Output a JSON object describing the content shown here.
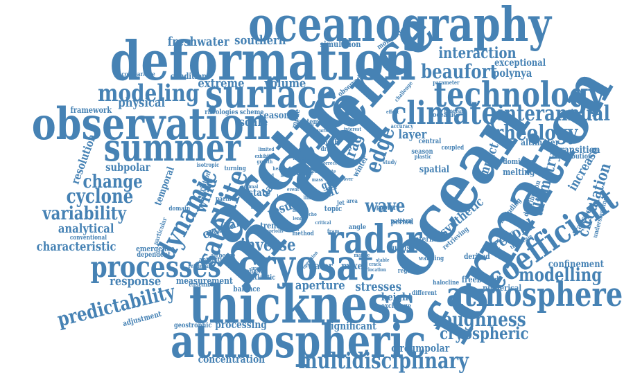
{
  "accent_color": "#4682b4",
  "words": [
    {
      "text": "model",
      "w": 100
    },
    {
      "text": "arctic",
      "w": 96
    },
    {
      "text": "science",
      "w": 92
    },
    {
      "text": "ocean",
      "w": 90
    },
    {
      "text": "formation",
      "w": 86
    },
    {
      "text": "deformation",
      "w": 84
    },
    {
      "text": "observation",
      "w": 76
    },
    {
      "text": "oceanography",
      "w": 74
    },
    {
      "text": "thickness",
      "w": 74
    },
    {
      "text": "atmospheric",
      "w": 70
    },
    {
      "text": "cryosat",
      "w": 66
    },
    {
      "text": "surface",
      "w": 60
    },
    {
      "text": "summer",
      "w": 58
    },
    {
      "text": "technology",
      "w": 56
    },
    {
      "text": "radar",
      "w": 56
    },
    {
      "text": "climate",
      "w": 54
    },
    {
      "text": "atmosphere",
      "w": 52
    },
    {
      "text": "coefficient",
      "w": 52
    },
    {
      "text": "processes",
      "w": 48
    },
    {
      "text": "satellite",
      "w": 42
    },
    {
      "text": "dynamic",
      "w": 42
    },
    {
      "text": "modeling",
      "w": 40
    },
    {
      "text": "multidisciplinary",
      "w": 38
    },
    {
      "text": "interannual",
      "w": 36
    },
    {
      "text": "edge",
      "w": 36
    },
    {
      "text": "rheology",
      "w": 34
    },
    {
      "text": "roughness",
      "w": 32
    },
    {
      "text": "beaufort",
      "w": 32
    },
    {
      "text": "predictability",
      "w": 32
    },
    {
      "text": "modelling",
      "w": 30
    },
    {
      "text": "cyclone",
      "w": 30
    },
    {
      "text": "variability",
      "w": 30
    },
    {
      "text": "change",
      "w": 28
    },
    {
      "text": "wave",
      "w": 28
    },
    {
      "text": "inverse",
      "w": 28
    },
    {
      "text": "cryospheric",
      "w": 28
    },
    {
      "text": "interaction",
      "w": 26
    },
    {
      "text": "drag",
      "w": 26
    },
    {
      "text": "wind",
      "w": 26
    },
    {
      "text": "record",
      "w": 26
    },
    {
      "text": "altimetry",
      "w": 26
    },
    {
      "text": "circulation",
      "w": 26
    },
    {
      "text": "freshwater",
      "w": 22
    },
    {
      "text": "southern",
      "w": 22
    },
    {
      "text": "volume",
      "w": 22
    },
    {
      "text": "physical",
      "w": 22
    },
    {
      "text": "extreme",
      "w": 22
    },
    {
      "text": "scale",
      "w": 22
    },
    {
      "text": "layer",
      "w": 22
    },
    {
      "text": "impact",
      "w": 22
    },
    {
      "text": "increase",
      "w": 22
    },
    {
      "text": "synthetic",
      "w": 22
    },
    {
      "text": "analytical",
      "w": 22
    },
    {
      "text": "characteristic",
      "w": 22
    },
    {
      "text": "response",
      "w": 22
    },
    {
      "text": "aperture",
      "w": 22
    },
    {
      "text": "stresses",
      "w": 22
    },
    {
      "text": "crystal",
      "w": 22
    },
    {
      "text": "result",
      "w": 22
    },
    {
      "text": "resolution",
      "w": 20
    },
    {
      "text": "subpolar",
      "w": 20
    },
    {
      "text": "polynya",
      "w": 20
    },
    {
      "text": "concentration",
      "w": 20
    },
    {
      "text": "circumpolar",
      "w": 20
    },
    {
      "text": "processing",
      "w": 20
    },
    {
      "text": "significant",
      "w": 20
    },
    {
      "text": "confinement",
      "w": 20
    },
    {
      "text": "height",
      "w": 20
    },
    {
      "text": "drift",
      "w": 20
    },
    {
      "text": "gyre",
      "w": 20
    },
    {
      "text": "data",
      "w": 20
    },
    {
      "text": "seasonal",
      "w": 18
    },
    {
      "text": "exceptional",
      "w": 18
    },
    {
      "text": "temporal",
      "w": 18
    },
    {
      "text": "transition",
      "w": 18
    },
    {
      "text": "measurement",
      "w": 18
    },
    {
      "text": "water",
      "w": 18
    },
    {
      "text": "mixed",
      "w": 18
    },
    {
      "text": "state",
      "w": 18
    },
    {
      "text": "spatial",
      "w": 18
    },
    {
      "text": "melting",
      "w": 18
    },
    {
      "text": "altimeter",
      "w": 18
    },
    {
      "text": "condition",
      "w": 16
    },
    {
      "text": "simulation",
      "w": 16
    },
    {
      "text": "framework",
      "w": 16
    },
    {
      "text": "freeboard",
      "w": 16
    },
    {
      "text": "numerical",
      "w": 16
    },
    {
      "text": "august",
      "w": 16
    },
    {
      "text": "transport",
      "w": 16
    },
    {
      "text": "trend",
      "w": 16
    },
    {
      "text": "adjustment",
      "w": 14
    },
    {
      "text": "geostrophic",
      "w": 14
    },
    {
      "text": "dominant",
      "w": 14
    },
    {
      "text": "contribution",
      "w": 14
    },
    {
      "text": "derived",
      "w": 14
    },
    {
      "text": "balance",
      "w": 14
    },
    {
      "text": "retrieving",
      "w": 14
    },
    {
      "text": "including",
      "w": 14
    },
    {
      "text": "observed",
      "w": 14
    },
    {
      "text": "winter",
      "w": 14
    },
    {
      "text": "topic",
      "w": 14
    },
    {
      "text": "period",
      "w": 14
    },
    {
      "text": "internal",
      "w": 14
    },
    {
      "text": "emergence",
      "w": 12
    },
    {
      "text": "dependent",
      "w": 12
    },
    {
      "text": "variation",
      "w": 12
    },
    {
      "text": "scheme",
      "w": 12
    },
    {
      "text": "rheologies",
      "w": 12
    },
    {
      "text": "momentum",
      "w": 12
    },
    {
      "text": "oceanic",
      "w": 12
    },
    {
      "text": "system",
      "w": 12
    },
    {
      "text": "phased",
      "w": 12
    },
    {
      "text": "atlantic",
      "w": 12
    },
    {
      "text": "ensemble",
      "w": 12
    },
    {
      "text": "coupled",
      "w": 12
    },
    {
      "text": "central",
      "w": 12
    },
    {
      "text": "season",
      "w": 12
    },
    {
      "text": "exchange",
      "w": 12
    },
    {
      "text": "warming",
      "w": 12
    },
    {
      "text": "halocline",
      "w": 12
    },
    {
      "text": "regional",
      "w": 12
    },
    {
      "text": "distribution",
      "w": 12
    },
    {
      "text": "understanding",
      "w": 12
    },
    {
      "text": "september",
      "w": 12
    },
    {
      "text": "timescale",
      "w": 12
    },
    {
      "text": "different",
      "w": 12
    },
    {
      "text": "pattern",
      "w": 12
    },
    {
      "text": "antarctic",
      "w": 12
    },
    {
      "text": "airborne",
      "w": 12
    },
    {
      "text": "conventional",
      "w": 12
    },
    {
      "text": "particular",
      "w": 12
    },
    {
      "text": "domain",
      "w": 12
    },
    {
      "text": "pacific",
      "w": 12
    },
    {
      "text": "month",
      "w": 12
    },
    {
      "text": "drove",
      "w": 12
    },
    {
      "text": "mode",
      "w": 12
    },
    {
      "text": "time",
      "w": 12
    },
    {
      "text": "more",
      "w": 12
    },
    {
      "text": "polar",
      "w": 12
    },
    {
      "text": "power",
      "w": 12
    },
    {
      "text": "angle",
      "w": 12
    },
    {
      "text": "method",
      "w": 12
    },
    {
      "text": "dataset",
      "w": 12
    },
    {
      "text": "retrieval",
      "w": 12
    },
    {
      "text": "turning",
      "w": 12
    },
    {
      "text": "isotropic",
      "w": 12
    },
    {
      "text": "comparable",
      "w": 12
    },
    {
      "text": "parameter",
      "w": 12
    },
    {
      "text": "program",
      "w": 12
    },
    {
      "text": "plastic",
      "w": 12
    },
    {
      "text": "study",
      "w": 12
    },
    {
      "text": "accuracy",
      "w": 12
    },
    {
      "text": "challenge",
      "w": 12
    },
    {
      "text": "effect",
      "w": 12
    },
    {
      "text": "number",
      "w": 12
    },
    {
      "text": "interest",
      "w": 12
    },
    {
      "text": "various",
      "w": 12
    },
    {
      "text": "limited",
      "w": 12
    },
    {
      "text": "exhibit",
      "w": 12
    },
    {
      "text": "growth",
      "w": 12
    },
    {
      "text": "largest",
      "w": 12
    },
    {
      "text": "correct",
      "w": 12
    },
    {
      "text": "level",
      "w": 12
    },
    {
      "text": "optimal",
      "w": 12
    },
    {
      "text": "cover",
      "w": 12
    },
    {
      "text": "area",
      "w": 12
    },
    {
      "text": "jet",
      "w": 12
    },
    {
      "text": "pack",
      "w": 12
    },
    {
      "text": "sheet",
      "w": 12
    },
    {
      "text": "length",
      "w": 12
    },
    {
      "text": "coriolis",
      "w": 12
    },
    {
      "text": "upshot",
      "w": 12
    },
    {
      "text": "october",
      "w": 12
    },
    {
      "text": "critical",
      "w": 12
    },
    {
      "text": "fram",
      "w": 12
    },
    {
      "text": "crack",
      "w": 12
    },
    {
      "text": "location",
      "w": 12
    },
    {
      "text": "marine",
      "w": 12
    },
    {
      "text": "stable",
      "w": 12
    },
    {
      "text": "spring",
      "w": 12
    },
    {
      "text": "operation",
      "w": 12
    },
    {
      "text": "event",
      "w": 12
    },
    {
      "text": "limit",
      "w": 12
    },
    {
      "text": "basin",
      "w": 12
    },
    {
      "text": "echo",
      "w": 12
    },
    {
      "text": "zone",
      "w": 12
    },
    {
      "text": "heat",
      "w": 12
    },
    {
      "text": "lead",
      "w": 12
    },
    {
      "text": "rate",
      "w": 12
    },
    {
      "text": "loss",
      "w": 12
    },
    {
      "text": "mass",
      "w": 12
    }
  ]
}
